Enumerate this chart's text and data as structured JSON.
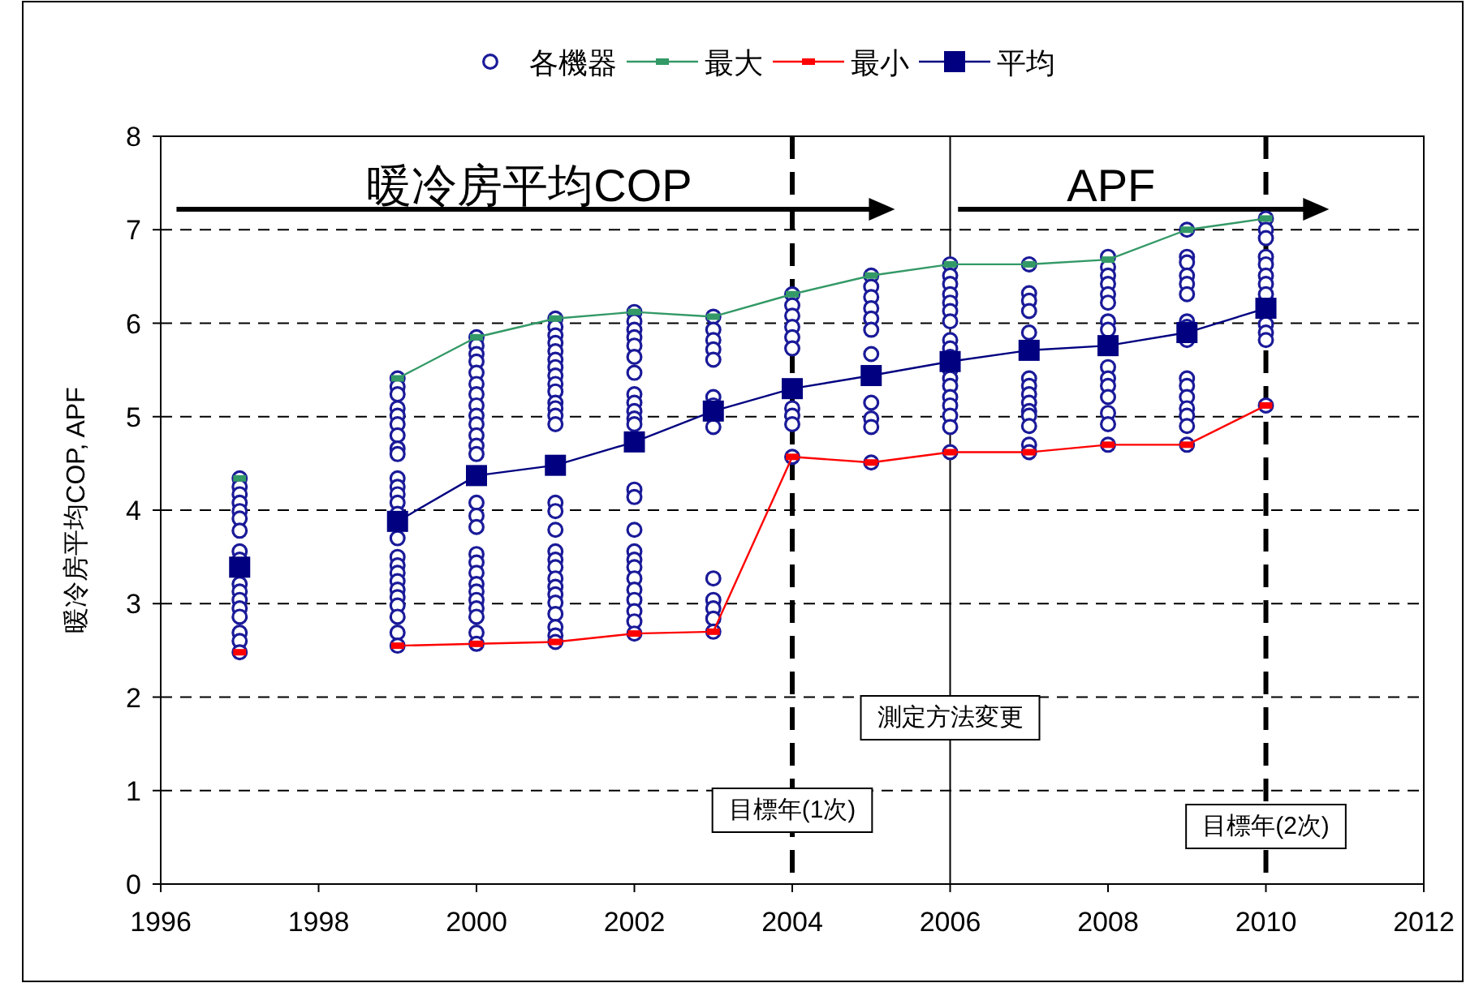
{
  "chart_data": {
    "type": "scatter",
    "ylabel": "暖冷房平均COP, APF",
    "xlim": [
      1996,
      2012
    ],
    "xticks": [
      1996,
      1998,
      2000,
      2002,
      2004,
      2006,
      2008,
      2010,
      2012
    ],
    "ylim": [
      0,
      8
    ],
    "yticks": [
      0,
      1,
      2,
      3,
      4,
      5,
      6,
      7,
      8
    ],
    "grid": "y",
    "legend": "top",
    "annotations": [
      "暖冷房平均COP",
      "APF"
    ],
    "ref_lines": [
      {
        "axis": "x",
        "value": 2004,
        "label": "目標年(1次)",
        "color": "#000000",
        "line_style": "dashed"
      },
      {
        "axis": "x",
        "value": 2006,
        "label": "測定方法変更",
        "color": "#000000",
        "line_style": "solid"
      },
      {
        "axis": "x",
        "value": 2010,
        "label": "目標年(2次)",
        "color": "#000000",
        "line_style": "dashed"
      }
    ],
    "series": [
      {
        "name": "各機器",
        "type": "scatter",
        "marker": "circle",
        "color": "#1a1a99",
        "x": [
          1997,
          1997,
          1997,
          1997,
          1997,
          1997,
          1997,
          1997,
          1997,
          1997,
          1997,
          1997,
          1997,
          1997,
          1997,
          1997,
          1997,
          1999,
          1999,
          1999,
          1999,
          1999,
          1999,
          1999,
          1999,
          1999,
          1999,
          1999,
          1999,
          1999,
          1999,
          1999,
          1999,
          1999,
          1999,
          1999,
          1999,
          1999,
          1999,
          1999,
          1999,
          1999,
          2000,
          2000,
          2000,
          2000,
          2000,
          2000,
          2000,
          2000,
          2000,
          2000,
          2000,
          2000,
          2000,
          2000,
          2000,
          2000,
          2000,
          2000,
          2000,
          2000,
          2000,
          2000,
          2000,
          2000,
          2000,
          2000,
          2001,
          2001,
          2001,
          2001,
          2001,
          2001,
          2001,
          2001,
          2001,
          2001,
          2001,
          2001,
          2001,
          2001,
          2001,
          2001,
          2001,
          2001,
          2001,
          2001,
          2001,
          2001,
          2001,
          2001,
          2001,
          2001,
          2001,
          2001,
          2002,
          2002,
          2002,
          2002,
          2002,
          2002,
          2002,
          2002,
          2002,
          2002,
          2002,
          2002,
          2002,
          2002,
          2002,
          2002,
          2002,
          2002,
          2002,
          2002,
          2002,
          2002,
          2002,
          2002,
          2003,
          2003,
          2003,
          2003,
          2003,
          2003,
          2003,
          2003,
          2003,
          2003,
          2003,
          2003,
          2003,
          2004,
          2004,
          2004,
          2004,
          2004,
          2004,
          2004,
          2004,
          2004,
          2004,
          2005,
          2005,
          2005,
          2005,
          2005,
          2005,
          2005,
          2005,
          2005,
          2005,
          2005,
          2006,
          2006,
          2006,
          2006,
          2006,
          2006,
          2006,
          2006,
          2006,
          2006,
          2006,
          2006,
          2006,
          2006,
          2006,
          2006,
          2006,
          2006,
          2007,
          2007,
          2007,
          2007,
          2007,
          2007,
          2007,
          2007,
          2007,
          2007,
          2007,
          2007,
          2007,
          2007,
          2008,
          2008,
          2008,
          2008,
          2008,
          2008,
          2008,
          2008,
          2008,
          2008,
          2008,
          2008,
          2008,
          2008,
          2008,
          2009,
          2009,
          2009,
          2009,
          2009,
          2009,
          2009,
          2009,
          2009,
          2009,
          2009,
          2009,
          2009,
          2009,
          2009,
          2009,
          2010,
          2010,
          2010,
          2010,
          2010,
          2010,
          2010,
          2010,
          2010,
          2010,
          2010,
          2010
        ],
        "values": [
          4.34,
          4.25,
          4.17,
          4.08,
          3.99,
          3.91,
          3.78,
          3.56,
          3.47,
          3.21,
          3.13,
          3.04,
          2.95,
          2.86,
          2.69,
          2.6,
          2.48,
          5.41,
          5.32,
          5.24,
          5.09,
          5.01,
          4.92,
          4.8,
          4.66,
          4.6,
          4.34,
          4.25,
          4.17,
          4.08,
          3.96,
          3.7,
          3.5,
          3.41,
          3.33,
          3.24,
          3.15,
          3.07,
          2.98,
          2.86,
          2.69,
          2.55,
          5.85,
          5.76,
          5.67,
          5.59,
          5.47,
          5.35,
          5.24,
          5.12,
          5.01,
          4.92,
          4.8,
          4.69,
          4.6,
          4.08,
          3.94,
          3.82,
          3.53,
          3.44,
          3.33,
          3.21,
          3.13,
          3.04,
          2.95,
          2.86,
          2.69,
          2.57,
          6.05,
          5.96,
          5.87,
          5.79,
          5.7,
          5.61,
          5.53,
          5.44,
          5.35,
          5.27,
          5.15,
          5.09,
          5.01,
          4.92,
          4.08,
          3.99,
          3.79,
          3.56,
          3.47,
          3.39,
          3.27,
          3.18,
          3.1,
          3.01,
          2.89,
          2.75,
          2.66,
          2.59,
          6.12,
          6.02,
          5.93,
          5.85,
          5.76,
          5.64,
          5.47,
          5.24,
          5.15,
          5.06,
          4.98,
          4.92,
          4.22,
          4.14,
          3.79,
          3.56,
          3.47,
          3.39,
          3.27,
          3.15,
          3.04,
          2.92,
          2.81,
          2.68,
          6.07,
          5.93,
          5.82,
          5.72,
          5.61,
          5.21,
          5.12,
          4.89,
          3.27,
          3.04,
          2.95,
          2.84,
          2.7,
          6.31,
          6.19,
          6.08,
          5.96,
          5.85,
          5.73,
          5.09,
          5.01,
          4.92,
          4.57,
          6.51,
          6.39,
          6.28,
          6.16,
          6.05,
          5.93,
          5.67,
          5.15,
          4.98,
          4.89,
          4.51,
          6.63,
          6.51,
          6.42,
          6.31,
          6.22,
          6.13,
          6.02,
          5.82,
          5.73,
          5.64,
          5.5,
          5.41,
          5.33,
          5.21,
          5.12,
          5.01,
          4.89,
          4.62,
          6.63,
          6.32,
          6.24,
          6.13,
          5.9,
          5.41,
          5.33,
          5.24,
          5.15,
          5.06,
          5.01,
          4.9,
          4.7,
          4.62,
          6.71,
          6.6,
          6.51,
          6.42,
          6.31,
          6.22,
          6.02,
          5.93,
          5.53,
          5.41,
          5.33,
          5.21,
          5.04,
          4.92,
          4.7,
          7.0,
          6.71,
          6.65,
          6.51,
          6.42,
          6.31,
          6.02,
          5.96,
          5.82,
          5.41,
          5.33,
          5.21,
          5.09,
          5.01,
          4.9,
          4.7,
          7.12,
          7.0,
          6.91,
          6.71,
          6.63,
          6.51,
          6.42,
          6.31,
          5.99,
          5.9,
          5.82,
          5.12
        ]
      },
      {
        "name": "最大",
        "type": "line",
        "marker": "square",
        "line_style": "solid",
        "color": "#339966",
        "x": [
          1997,
          1998,
          1999,
          2000,
          2001,
          2002,
          2003,
          2004,
          2005,
          2006,
          2007,
          2008,
          2009,
          2010
        ],
        "values": [
          4.34,
          null,
          5.41,
          5.85,
          6.05,
          6.12,
          6.07,
          6.31,
          6.51,
          6.63,
          6.63,
          6.68,
          7.0,
          7.12
        ]
      },
      {
        "name": "最小",
        "type": "line",
        "marker": "square",
        "line_style": "solid",
        "color": "#ff0000",
        "x": [
          1997,
          1998,
          1999,
          2000,
          2001,
          2002,
          2003,
          2004,
          2005,
          2006,
          2007,
          2008,
          2009,
          2010
        ],
        "values": [
          2.48,
          null,
          2.55,
          2.57,
          2.59,
          2.68,
          2.7,
          4.57,
          4.51,
          4.62,
          4.62,
          4.7,
          4.7,
          5.12
        ]
      },
      {
        "name": "平均",
        "type": "line",
        "marker": "square",
        "line_style": "solid",
        "color": "#000080",
        "x": [
          1997,
          1998,
          1999,
          2000,
          2001,
          2002,
          2003,
          2004,
          2005,
          2006,
          2007,
          2008,
          2009,
          2010
        ],
        "values": [
          3.39,
          null,
          3.88,
          4.37,
          4.48,
          4.73,
          5.06,
          5.3,
          5.44,
          5.59,
          5.71,
          5.76,
          5.9,
          6.16
        ]
      }
    ]
  }
}
